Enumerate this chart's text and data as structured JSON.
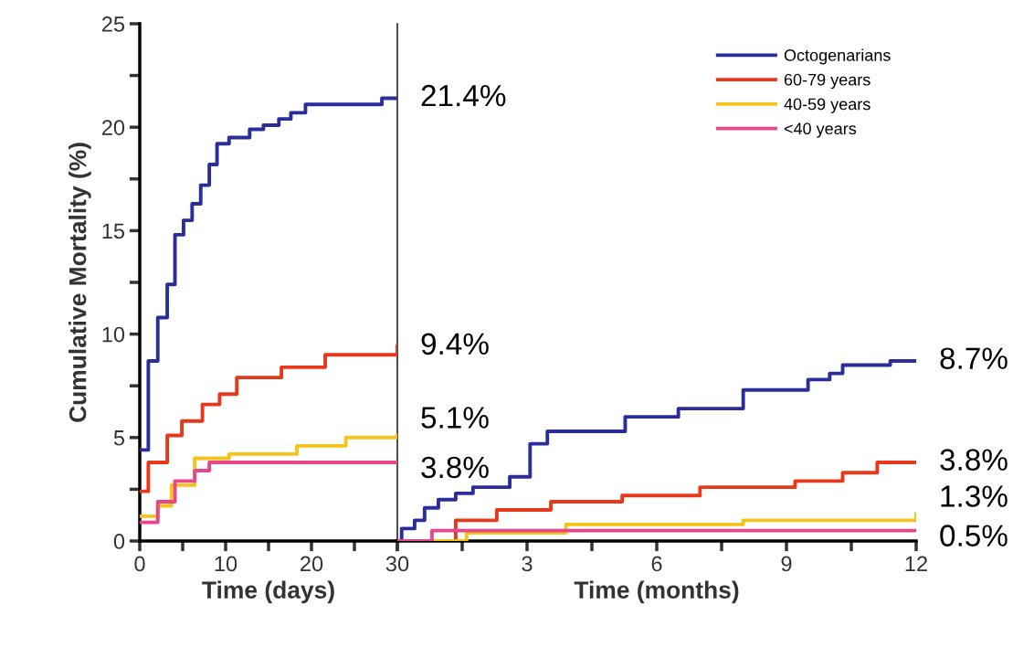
{
  "chart_data": [
    {
      "type": "step",
      "xlabel": "Time (days)",
      "ylabel": "Cumulative Mortality (%)",
      "xlim": [
        0,
        30
      ],
      "ylim": [
        0,
        25
      ],
      "xticks": [
        0,
        {
          "value": 5,
          "label": null
        },
        10,
        {
          "value": 15,
          "label": null
        },
        20,
        {
          "value": 25,
          "label": null
        },
        30
      ],
      "yticks": [
        0,
        {
          "value": 2.5,
          "label": null
        },
        5,
        {
          "value": 7.5,
          "label": null
        },
        10,
        {
          "value": 12.5,
          "label": null
        },
        15,
        {
          "value": 17.5,
          "label": null
        },
        20,
        {
          "value": 22.5,
          "label": null
        },
        25
      ],
      "grid": false,
      "legend": false,
      "series": [
        {
          "color": "#2b2e9a",
          "x": [
            0,
            1,
            2.1,
            3.2,
            4.1,
            5.1,
            6.1,
            7.1,
            8.1,
            9,
            10.4,
            12.8,
            14.4,
            16.2,
            17.6,
            19.3,
            28.2,
            30
          ],
          "values": [
            4.4,
            8.7,
            10.8,
            12.4,
            14.8,
            15.5,
            16.3,
            17.2,
            18.2,
            19.2,
            19.5,
            19.9,
            20.1,
            20.4,
            20.7,
            21.1,
            21.4,
            21.4
          ],
          "value_labels": [
            null,
            null,
            null,
            null,
            null,
            null,
            null,
            null,
            null,
            null,
            null,
            null,
            null,
            null,
            null,
            null,
            null,
            "21.4%"
          ]
        },
        {
          "color": "#e8381c",
          "x": [
            0,
            1,
            3.2,
            4.9,
            7.3,
            9.3,
            11.3,
            16.5,
            21.6,
            30
          ],
          "values": [
            2.4,
            3.8,
            5.1,
            5.8,
            6.6,
            7.1,
            7.9,
            8.4,
            9.0,
            9.4
          ],
          "value_labels": [
            null,
            null,
            null,
            null,
            null,
            null,
            null,
            null,
            null,
            "9.4%"
          ]
        },
        {
          "color": "#f7c21a",
          "x": [
            0,
            2.1,
            3.7,
            6.4,
            10.4,
            18.3,
            24,
            30
          ],
          "values": [
            1.2,
            1.7,
            2.7,
            4.0,
            4.2,
            4.6,
            5.0,
            5.1
          ],
          "value_labels": [
            null,
            null,
            null,
            null,
            null,
            null,
            null,
            "5.1%"
          ]
        },
        {
          "color": "#e8458b",
          "x": [
            0,
            2.1,
            4.1,
            6.4,
            8.1,
            30
          ],
          "values": [
            0.9,
            1.9,
            2.9,
            3.4,
            3.8,
            3.8
          ],
          "value_labels": [
            null,
            null,
            null,
            null,
            null,
            "3.8%"
          ]
        }
      ]
    },
    {
      "type": "step",
      "xlabel": "Time (months)",
      "xlim": [
        0,
        12
      ],
      "ylim": [
        0,
        25
      ],
      "tick_labels": "x",
      "xticks": [
        {
          "value": 0,
          "label": null
        },
        {
          "value": 1.5,
          "label": null
        },
        3,
        {
          "value": 4.5,
          "label": null
        },
        6,
        {
          "value": 7.5,
          "label": null
        },
        9,
        {
          "value": 10.5,
          "label": null
        },
        12
      ],
      "grid": false,
      "legend": "top right",
      "series": [
        {
          "name": "Octogenarians",
          "color": "#2b2e9a",
          "x": [
            0,
            0.1,
            0.4,
            0.63,
            0.95,
            1.35,
            1.75,
            2.6,
            3.07,
            3.47,
            5.27,
            6.5,
            8.0,
            9.5,
            10.0,
            10.3,
            11.4,
            12
          ],
          "values": [
            0,
            0.6,
            1.0,
            1.6,
            2.0,
            2.3,
            2.6,
            3.1,
            4.7,
            5.3,
            6.0,
            6.4,
            7.3,
            7.8,
            8.1,
            8.5,
            8.7,
            8.7
          ],
          "value_labels": [
            null,
            null,
            null,
            null,
            null,
            null,
            null,
            null,
            null,
            null,
            null,
            null,
            null,
            null,
            null,
            null,
            null,
            "8.7%"
          ]
        },
        {
          "name": "60-79 years",
          "color": "#e8381c",
          "x": [
            0,
            1.35,
            2.3,
            3.55,
            5.2,
            7.0,
            9.2,
            10.3,
            11.1,
            12
          ],
          "values": [
            0,
            1.0,
            1.5,
            1.9,
            2.2,
            2.6,
            2.9,
            3.3,
            3.8,
            3.8
          ],
          "value_labels": [
            null,
            null,
            null,
            null,
            null,
            null,
            null,
            null,
            null,
            "3.8%"
          ]
        },
        {
          "name": "40-59 years",
          "color": "#f7c21a",
          "x": [
            0,
            1.6,
            3.9,
            8.0,
            12
          ],
          "values": [
            0,
            0.4,
            0.8,
            1.0,
            1.3
          ],
          "value_labels": [
            null,
            null,
            null,
            null,
            "1.3%"
          ]
        },
        {
          "name": "<40 years",
          "color": "#e8458b",
          "x": [
            0,
            0.8,
            3,
            6,
            9,
            12
          ],
          "values": [
            0,
            0.5,
            0.5,
            0.5,
            0.5,
            0.5
          ],
          "value_labels": [
            null,
            null,
            null,
            null,
            null,
            "0.5%"
          ]
        }
      ]
    }
  ]
}
